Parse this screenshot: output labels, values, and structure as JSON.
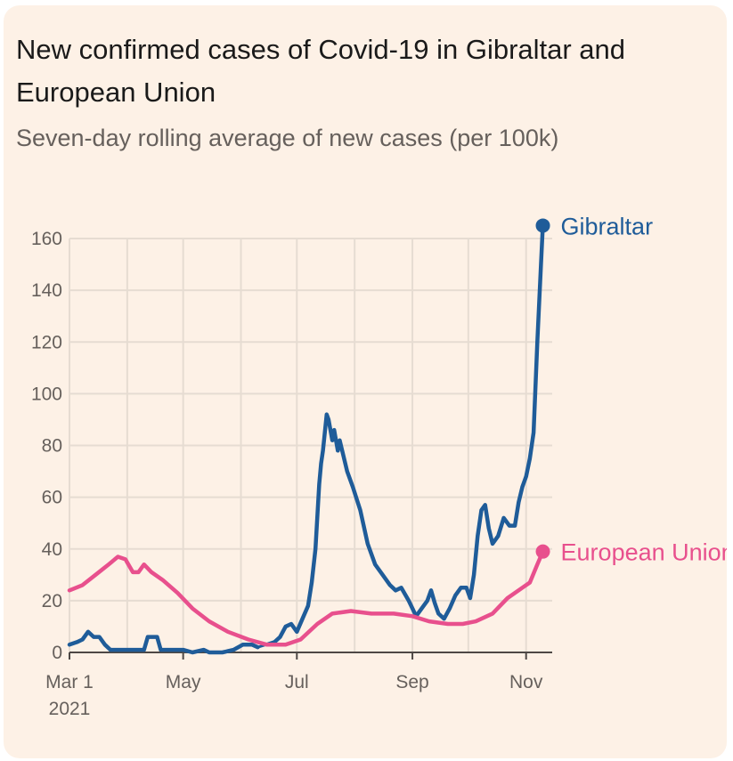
{
  "title": "New confirmed cases of Covid-19 in Gibraltar and European Union",
  "subtitle": "Seven-day rolling average of new cases (per 100k)",
  "colors": {
    "background": "#fdf1e6",
    "grid": "#e6dcd2",
    "gibraltar": "#1f5c99",
    "eu": "#e8508d",
    "text": "#66605c"
  },
  "chart_data": {
    "type": "line",
    "title": "New confirmed cases of Covid-19 in Gibraltar and European Union",
    "subtitle": "Seven-day rolling average of new cases (per 100k)",
    "xlabel": "",
    "ylabel": "",
    "xlim": [
      "2021-03-01",
      "2021-11-15"
    ],
    "ylim": [
      0,
      160
    ],
    "yticks": [
      0,
      20,
      40,
      60,
      80,
      100,
      120,
      140,
      160
    ],
    "ytick_labels": [
      "0",
      "20",
      "40",
      "60",
      "80",
      "100",
      "120",
      "140",
      "160"
    ],
    "xticks": [
      {
        "date": "2021-03-01",
        "label": "Mar 1",
        "sublabel": "2021"
      },
      {
        "date": "2021-05-01",
        "label": "May",
        "sublabel": ""
      },
      {
        "date": "2021-07-01",
        "label": "Jul",
        "sublabel": ""
      },
      {
        "date": "2021-09-01",
        "label": "Sep",
        "sublabel": ""
      },
      {
        "date": "2021-11-01",
        "label": "Nov",
        "sublabel": ""
      }
    ],
    "grid": true,
    "legend": "labels at line ends",
    "series": [
      {
        "name": "Gibraltar",
        "color": "#1f5c99",
        "end_marker": true,
        "points": [
          [
            "2021-03-01",
            3
          ],
          [
            "2021-03-05",
            4
          ],
          [
            "2021-03-08",
            5
          ],
          [
            "2021-03-11",
            8
          ],
          [
            "2021-03-14",
            6
          ],
          [
            "2021-03-17",
            6
          ],
          [
            "2021-03-20",
            3
          ],
          [
            "2021-03-23",
            1
          ],
          [
            "2021-03-28",
            1
          ],
          [
            "2021-04-04",
            1
          ],
          [
            "2021-04-10",
            1
          ],
          [
            "2021-04-12",
            6
          ],
          [
            "2021-04-17",
            6
          ],
          [
            "2021-04-19",
            1
          ],
          [
            "2021-04-25",
            1
          ],
          [
            "2021-05-01",
            1
          ],
          [
            "2021-05-06",
            0
          ],
          [
            "2021-05-12",
            1
          ],
          [
            "2021-05-15",
            0
          ],
          [
            "2021-05-22",
            0
          ],
          [
            "2021-05-28",
            1
          ],
          [
            "2021-06-02",
            3
          ],
          [
            "2021-06-07",
            3
          ],
          [
            "2021-06-10",
            2
          ],
          [
            "2021-06-15",
            3
          ],
          [
            "2021-06-19",
            4
          ],
          [
            "2021-06-22",
            6
          ],
          [
            "2021-06-25",
            10
          ],
          [
            "2021-06-28",
            11
          ],
          [
            "2021-07-01",
            8
          ],
          [
            "2021-07-04",
            13
          ],
          [
            "2021-07-07",
            18
          ],
          [
            "2021-07-09",
            27
          ],
          [
            "2021-07-11",
            40
          ],
          [
            "2021-07-13",
            65
          ],
          [
            "2021-07-14",
            73
          ],
          [
            "2021-07-15",
            78
          ],
          [
            "2021-07-17",
            92
          ],
          [
            "2021-07-18",
            90
          ],
          [
            "2021-07-20",
            82
          ],
          [
            "2021-07-21",
            86
          ],
          [
            "2021-07-23",
            78
          ],
          [
            "2021-07-24",
            82
          ],
          [
            "2021-07-26",
            76
          ],
          [
            "2021-07-28",
            70
          ],
          [
            "2021-07-31",
            64
          ],
          [
            "2021-08-04",
            55
          ],
          [
            "2021-08-08",
            42
          ],
          [
            "2021-08-12",
            34
          ],
          [
            "2021-08-16",
            30
          ],
          [
            "2021-08-20",
            26
          ],
          [
            "2021-08-23",
            24
          ],
          [
            "2021-08-26",
            25
          ],
          [
            "2021-08-30",
            20
          ],
          [
            "2021-09-01",
            17
          ],
          [
            "2021-09-03",
            14
          ],
          [
            "2021-09-06",
            17
          ],
          [
            "2021-09-09",
            20
          ],
          [
            "2021-09-11",
            24
          ],
          [
            "2021-09-13",
            19
          ],
          [
            "2021-09-15",
            15
          ],
          [
            "2021-09-18",
            13
          ],
          [
            "2021-09-21",
            17
          ],
          [
            "2021-09-24",
            22
          ],
          [
            "2021-09-27",
            25
          ],
          [
            "2021-09-30",
            25
          ],
          [
            "2021-10-02",
            21
          ],
          [
            "2021-10-04",
            30
          ],
          [
            "2021-10-06",
            45
          ],
          [
            "2021-10-08",
            55
          ],
          [
            "2021-10-10",
            57
          ],
          [
            "2021-10-12",
            48
          ],
          [
            "2021-10-14",
            42
          ],
          [
            "2021-10-17",
            45
          ],
          [
            "2021-10-20",
            52
          ],
          [
            "2021-10-23",
            49
          ],
          [
            "2021-10-26",
            49
          ],
          [
            "2021-10-28",
            58
          ],
          [
            "2021-10-30",
            64
          ],
          [
            "2021-11-01",
            68
          ],
          [
            "2021-11-03",
            75
          ],
          [
            "2021-11-05",
            85
          ],
          [
            "2021-11-07",
            120
          ],
          [
            "2021-11-09",
            150
          ],
          [
            "2021-11-10",
            165
          ]
        ],
        "gap": [
          "2021-06-10",
          "2021-06-19"
        ],
        "end_value": 165
      },
      {
        "name": "European Union",
        "color": "#e8508d",
        "end_marker": true,
        "points": [
          [
            "2021-03-01",
            24
          ],
          [
            "2021-03-08",
            26
          ],
          [
            "2021-03-15",
            30
          ],
          [
            "2021-03-22",
            34
          ],
          [
            "2021-03-27",
            37
          ],
          [
            "2021-03-31",
            36
          ],
          [
            "2021-04-04",
            31
          ],
          [
            "2021-04-07",
            31
          ],
          [
            "2021-04-10",
            34
          ],
          [
            "2021-04-14",
            31
          ],
          [
            "2021-04-20",
            28
          ],
          [
            "2021-04-28",
            23
          ],
          [
            "2021-05-06",
            17
          ],
          [
            "2021-05-15",
            12
          ],
          [
            "2021-05-25",
            8
          ],
          [
            "2021-06-05",
            5
          ],
          [
            "2021-06-15",
            3
          ],
          [
            "2021-06-25",
            3
          ],
          [
            "2021-07-03",
            5
          ],
          [
            "2021-07-12",
            11
          ],
          [
            "2021-07-20",
            15
          ],
          [
            "2021-07-30",
            16
          ],
          [
            "2021-08-10",
            15
          ],
          [
            "2021-08-22",
            15
          ],
          [
            "2021-09-01",
            14
          ],
          [
            "2021-09-10",
            12
          ],
          [
            "2021-09-20",
            11
          ],
          [
            "2021-09-28",
            11
          ],
          [
            "2021-10-05",
            12
          ],
          [
            "2021-10-14",
            15
          ],
          [
            "2021-10-22",
            21
          ],
          [
            "2021-10-30",
            25
          ],
          [
            "2021-11-03",
            27
          ],
          [
            "2021-11-07",
            34
          ],
          [
            "2021-11-10",
            39
          ]
        ],
        "end_value": 39
      }
    ]
  }
}
